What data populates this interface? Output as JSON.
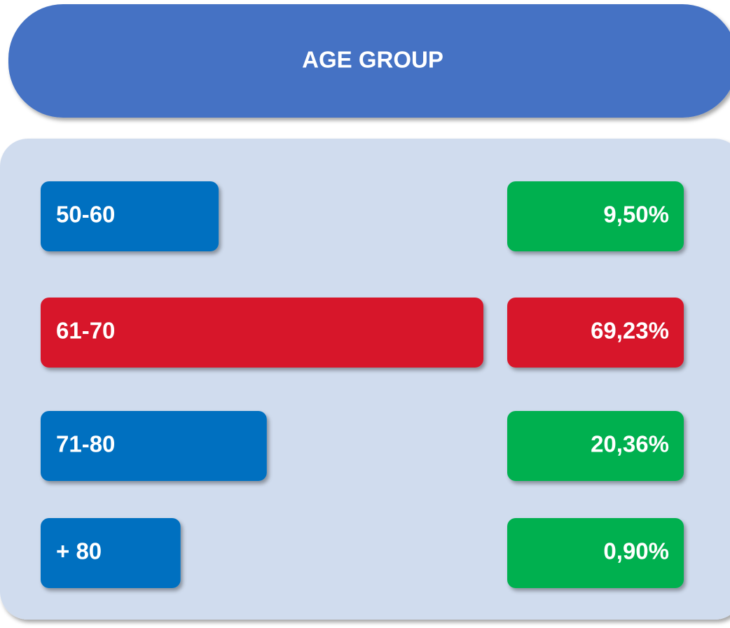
{
  "chart_data": {
    "type": "bar",
    "orientation": "horizontal",
    "title": "AGE GROUP",
    "categories": [
      "50-60",
      "61-70",
      "71-80",
      "+ 80"
    ],
    "values": [
      9.5,
      69.23,
      20.36,
      0.9
    ],
    "value_labels": [
      "9,50%",
      "69,23%",
      "20,36%",
      "0,90%"
    ],
    "colors": [
      "#0070c0",
      "#d7182a",
      "#0070c0",
      "#0070c0"
    ],
    "label_colors": [
      "#00b050",
      "#d7182a",
      "#00b050",
      "#00b050"
    ]
  }
}
